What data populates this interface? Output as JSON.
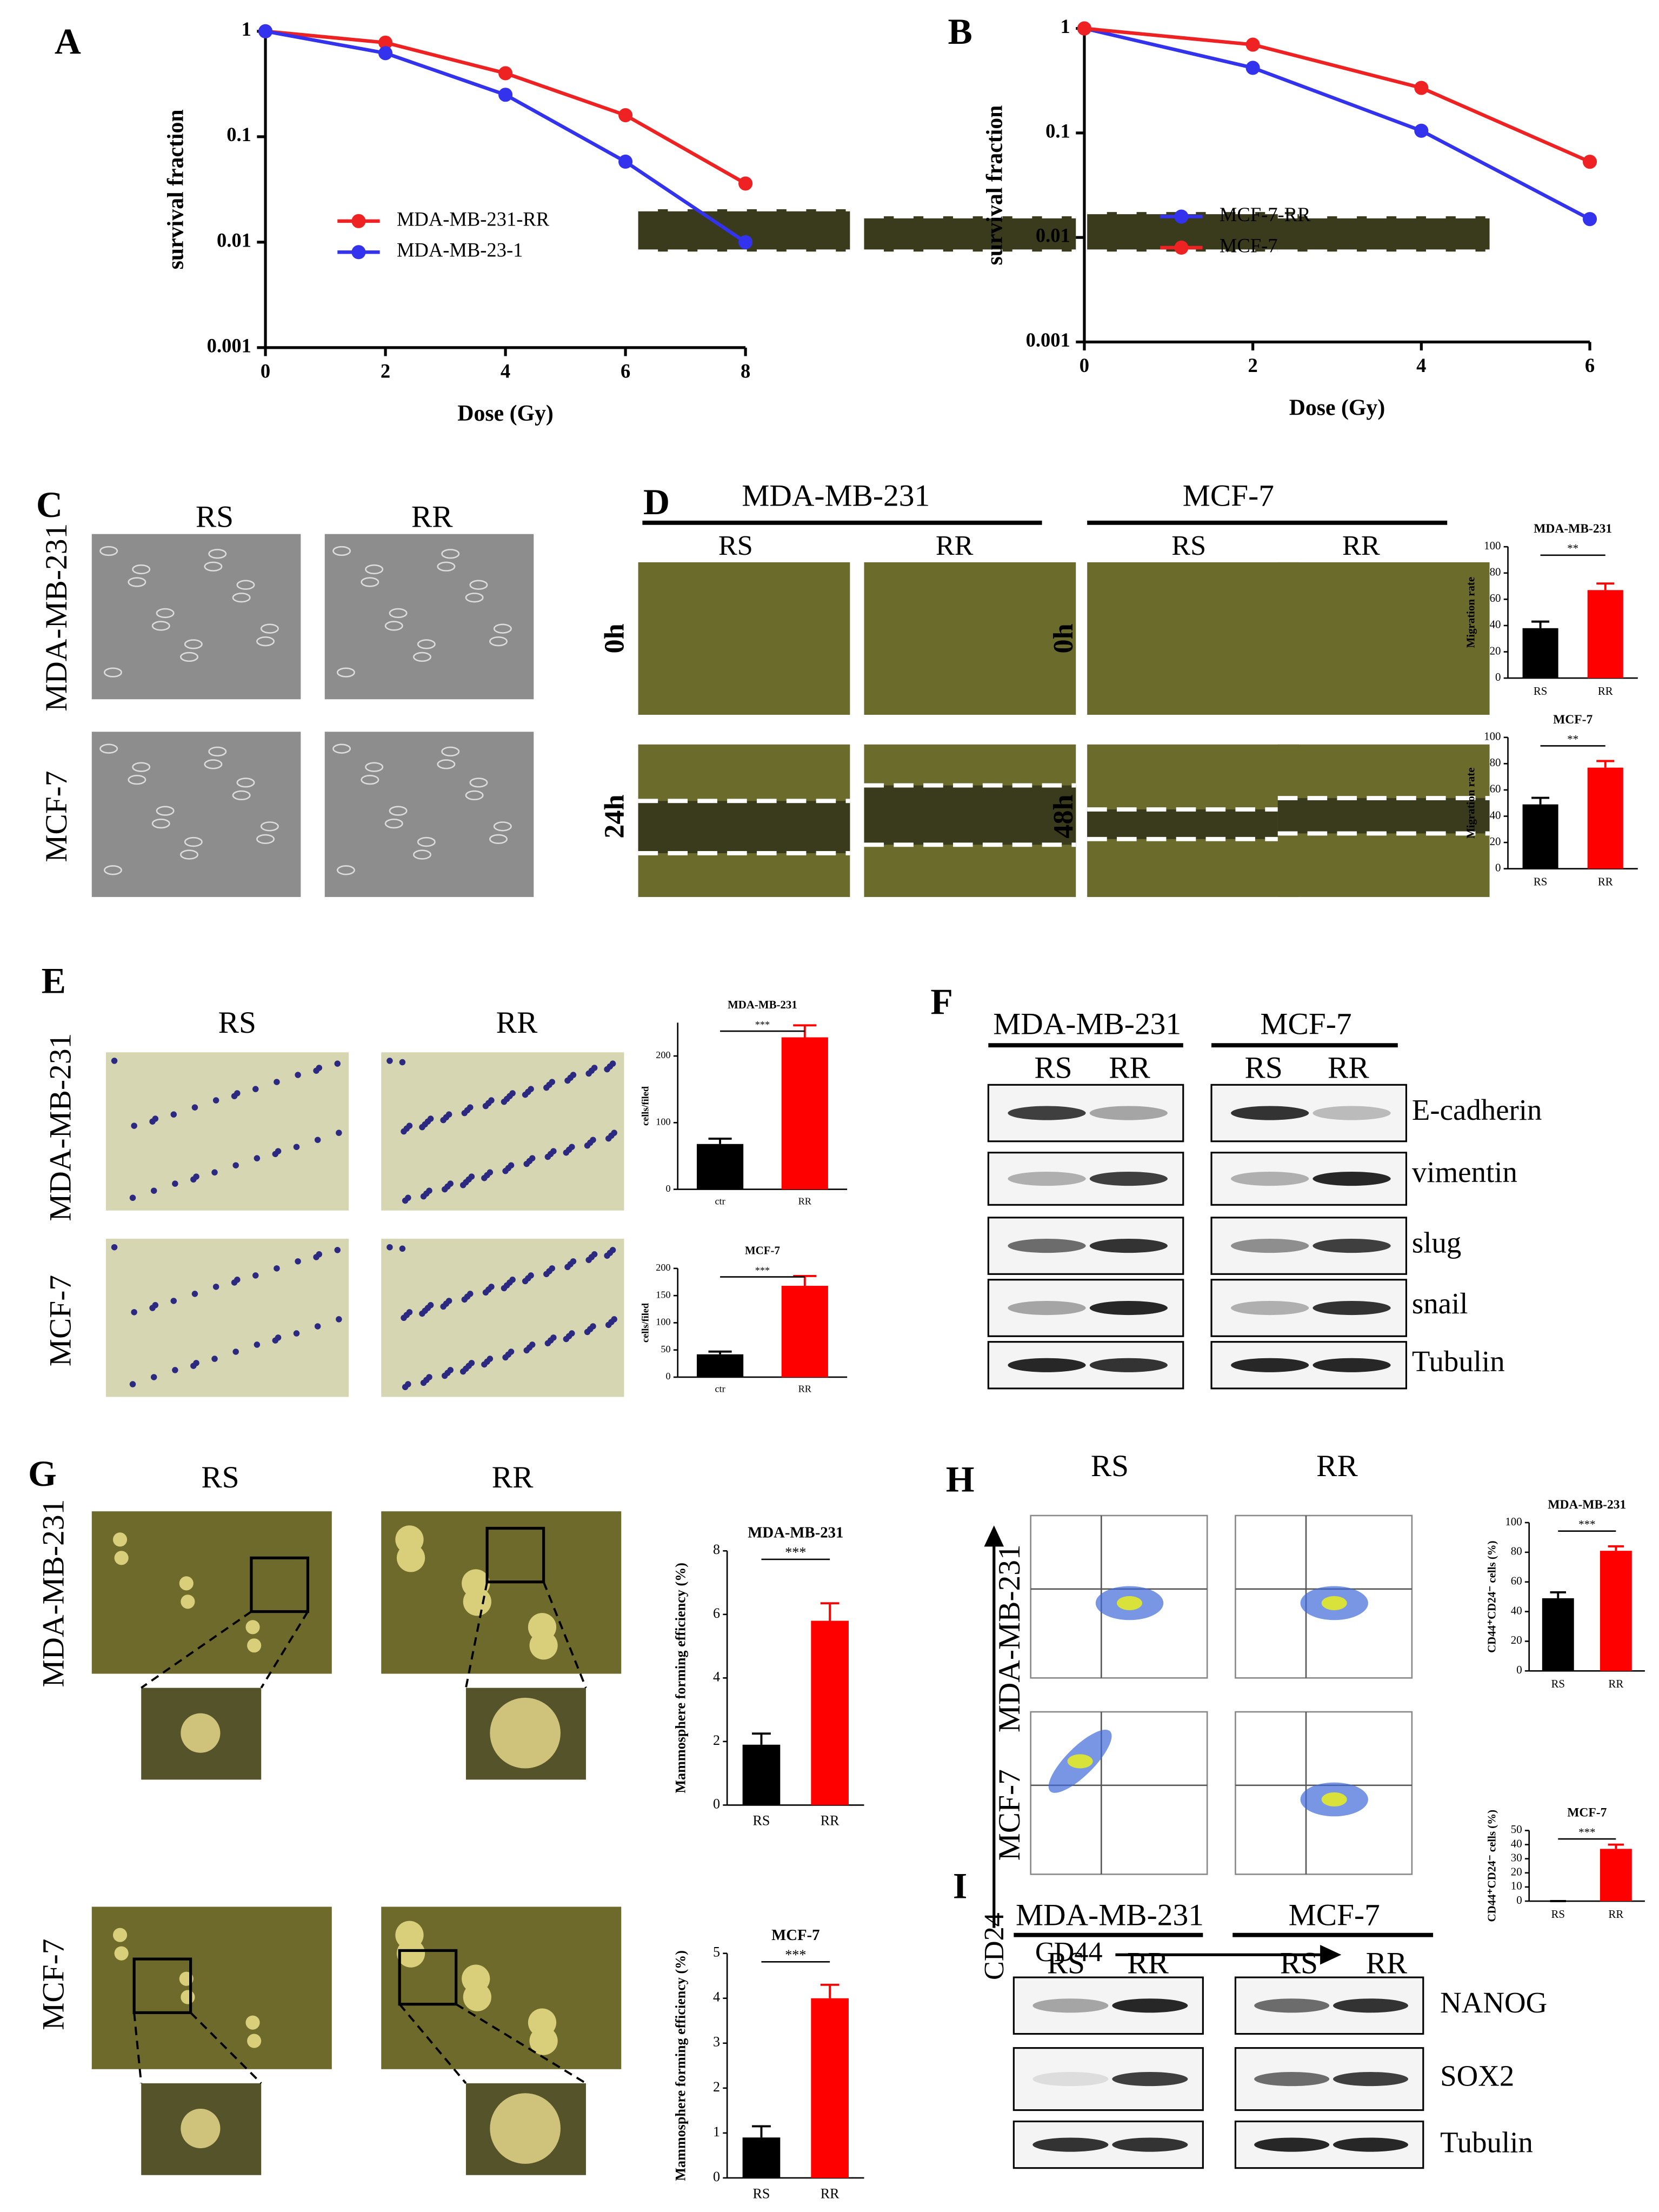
{
  "chart_data": [
    {
      "type": "line",
      "xlabel": "Dose (Gy)",
      "ylabel": "survival fraction",
      "x": [
        0,
        2,
        4,
        6,
        8
      ],
      "series": [
        {
          "name": "MDA-MB-231-RR",
          "color": "#ee2222",
          "values": [
            1,
            0.78,
            0.4,
            0.16,
            0.036
          ]
        },
        {
          "name": "MDA-MB-23-1",
          "color": "#3333ee",
          "values": [
            1,
            0.62,
            0.25,
            0.058,
            0.01
          ]
        }
      ],
      "xlim": [
        0,
        8
      ],
      "xticks": [
        0,
        2,
        4,
        6,
        8
      ],
      "ylim": [
        0.001,
        1
      ],
      "yticks": [
        0.001,
        0.01,
        0.1,
        1
      ],
      "log_y": true,
      "legend": "lower left"
    },
    {
      "type": "line",
      "xlabel": "Dose (Gy)",
      "ylabel": "survival fraction",
      "x": [
        0,
        2,
        4,
        6
      ],
      "series": [
        {
          "name": "MCF-7-RR",
          "color": "#3333ee",
          "values": [
            1,
            0.42,
            0.105,
            0.015
          ]
        },
        {
          "name": "MCF-7",
          "color": "#ee2222",
          "values": [
            1,
            0.7,
            0.27,
            0.053
          ]
        }
      ],
      "xlim": [
        0,
        6
      ],
      "xticks": [
        0,
        2,
        4,
        6
      ],
      "ylim": [
        0.001,
        1
      ],
      "yticks": [
        0.001,
        0.01,
        0.1,
        1
      ],
      "log_y": true,
      "legend": "lower left"
    },
    {
      "type": "bar",
      "title": "MDA-MB-231",
      "ylabel": "Migration rate",
      "categories": [
        "RS",
        "RR"
      ],
      "values": [
        38,
        67
      ],
      "errors": [
        5,
        5
      ],
      "colors": [
        "#000000",
        "#ff0000"
      ],
      "annotation": "**",
      "ylim": [
        0,
        100
      ],
      "yticks": [
        0,
        20,
        40,
        60,
        80,
        100
      ]
    },
    {
      "type": "bar",
      "title": "MCF-7",
      "ylabel": "Migration rate",
      "categories": [
        "RS",
        "RR"
      ],
      "values": [
        49,
        77
      ],
      "errors": [
        5,
        5
      ],
      "colors": [
        "#000000",
        "#ff0000"
      ],
      "annotation": "**",
      "ylim": [
        0,
        100
      ],
      "yticks": [
        0,
        20,
        40,
        60,
        80,
        100
      ]
    },
    {
      "type": "bar",
      "title": "MDA-MB-231",
      "ylabel": "cells/filed",
      "categories": [
        "ctr",
        "RR"
      ],
      "values": [
        68,
        228
      ],
      "errors": [
        8,
        18
      ],
      "colors": [
        "#000000",
        "#ff0000"
      ],
      "annotation": "***",
      "ylim": [
        0,
        250
      ],
      "yticks": [
        0,
        100,
        200
      ]
    },
    {
      "type": "bar",
      "title": "MCF-7",
      "ylabel": "cells/filed",
      "categories": [
        "ctr",
        "RR"
      ],
      "values": [
        42,
        168
      ],
      "errors": [
        5,
        18
      ],
      "colors": [
        "#000000",
        "#ff0000"
      ],
      "annotation": "***",
      "ylim": [
        0,
        200
      ],
      "yticks": [
        0,
        50,
        100,
        150,
        200
      ]
    },
    {
      "type": "bar",
      "title": "MDA-MB-231",
      "ylabel": "Mammosphere forming efficiency (%)",
      "categories": [
        "RS",
        "RR"
      ],
      "values": [
        1.9,
        5.8
      ],
      "errors": [
        0.35,
        0.55
      ],
      "colors": [
        "#000000",
        "#ff0000"
      ],
      "annotation": "***",
      "ylim": [
        0,
        8
      ],
      "yticks": [
        0,
        2,
        4,
        6,
        8
      ]
    },
    {
      "type": "bar",
      "title": "MCF-7",
      "ylabel": "Mammosphere forming efficiency (%)",
      "categories": [
        "RS",
        "RR"
      ],
      "values": [
        0.9,
        4
      ],
      "errors": [
        0.25,
        0.3
      ],
      "colors": [
        "#000000",
        "#ff0000"
      ],
      "annotation": "***",
      "ylim": [
        0,
        5
      ],
      "yticks": [
        0,
        1,
        2,
        3,
        4,
        5
      ]
    },
    {
      "type": "bar",
      "title": "MDA-MB-231",
      "ylabel": "CD44⁺CD24⁻ cells (%)",
      "categories": [
        "RS",
        "RR"
      ],
      "values": [
        49,
        81
      ],
      "errors": [
        4,
        3
      ],
      "colors": [
        "#000000",
        "#ff0000"
      ],
      "annotation": "***",
      "ylim": [
        0,
        100
      ],
      "yticks": [
        0,
        20,
        40,
        60,
        80,
        100
      ]
    },
    {
      "type": "bar",
      "title": "MCF-7",
      "ylabel": "CD44⁺CD24⁻ cells (%)",
      "categories": [
        "RS",
        "RR"
      ],
      "values": [
        0,
        37
      ],
      "errors": [
        0,
        3
      ],
      "colors": [
        "#000000",
        "#ff0000"
      ],
      "annotation": "***",
      "ylim": [
        0,
        50
      ],
      "yticks": [
        0,
        10,
        20,
        30,
        40,
        50
      ]
    }
  ],
  "figure": {
    "panels": [
      "A",
      "B",
      "C",
      "D",
      "E",
      "F",
      "G",
      "H",
      "I"
    ],
    "c": {
      "columns": [
        "RS",
        "RR"
      ],
      "rows": [
        "MDA-MB-231",
        "MCF-7"
      ]
    },
    "d": {
      "groups": [
        "MDA-MB-231",
        "MCF-7"
      ],
      "columns": [
        "RS",
        "RR",
        "RS",
        "RR"
      ],
      "rows": [
        "0h",
        "24h",
        "0h",
        "48h"
      ]
    },
    "e": {
      "columns": [
        "RS",
        "RR"
      ],
      "rows": [
        "MDA-MB-231",
        "MCF-7"
      ]
    },
    "f": {
      "groups": [
        "MDA-MB-231",
        "MCF-7"
      ],
      "columns": [
        "RS",
        "RR",
        "RS",
        "RR"
      ],
      "proteins": [
        "E-cadherin",
        "vimentin",
        "slug",
        "snail",
        "Tubulin"
      ]
    },
    "g": {
      "columns": [
        "RS",
        "RR"
      ],
      "rows": [
        "MDA-MB-231",
        "MCF-7"
      ]
    },
    "h": {
      "columns": [
        "RS",
        "RR"
      ],
      "rows": [
        "MDA-MB-231",
        "MCF-7"
      ],
      "y_axis": "CD24",
      "x_axis": "CD44"
    },
    "i": {
      "groups": [
        "MDA-MB-231",
        "MCF-7"
      ],
      "columns": [
        "RS",
        "RR",
        "RS",
        "RR"
      ],
      "proteins": [
        "NANOG",
        "SOX2",
        "Tubulin"
      ]
    }
  }
}
